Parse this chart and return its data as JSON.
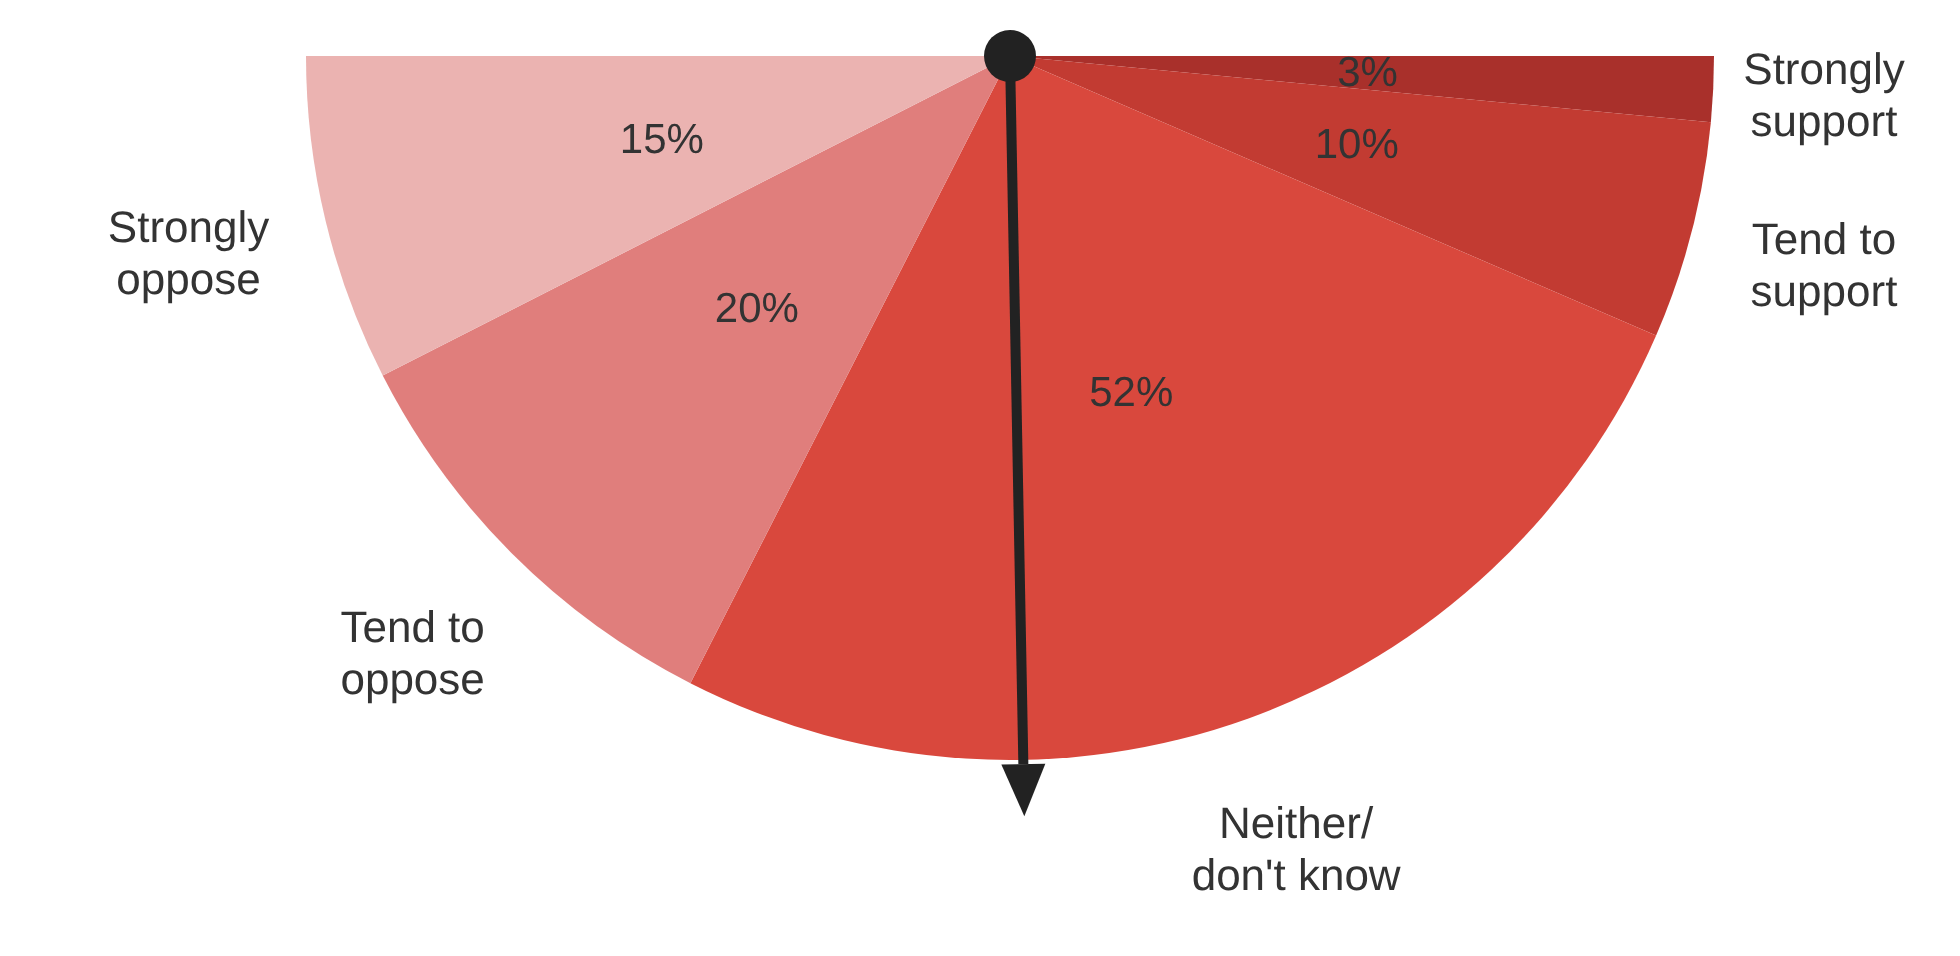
{
  "chart_data": {
    "type": "pie",
    "needle": "Neither/ don't know",
    "categories": [
      "Strongly support",
      "Tend to support",
      "Neither/ don't know",
      "Tend to oppose",
      "Strongly oppose"
    ],
    "values": [
      3,
      10,
      52,
      20,
      15
    ],
    "value_labels": [
      "3%",
      "10%",
      "52%",
      "20%",
      "15%"
    ],
    "colors": [
      "#a9302b",
      "#c23b32",
      "#d9483d",
      "#e07e7c",
      "#ebb3b1"
    ]
  }
}
